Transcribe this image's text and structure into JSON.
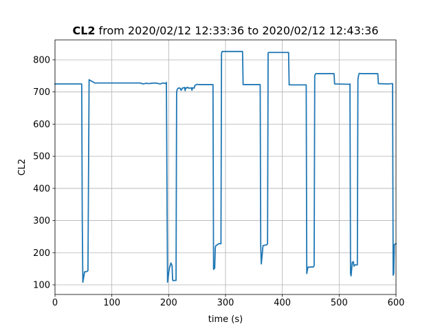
{
  "chart_data": {
    "type": "line",
    "title_bold": "CL2",
    "title_rest": " from 2020/02/12 12:33:36 to 2020/02/12 12:43:36",
    "xlabel": "time (s)",
    "ylabel": "CL2",
    "xlim": [
      0,
      600
    ],
    "ylim": [
      70,
      862
    ],
    "xticks": [
      0,
      100,
      200,
      300,
      400,
      500,
      600
    ],
    "yticks": [
      100,
      200,
      300,
      400,
      500,
      600,
      700,
      800
    ],
    "grid": true,
    "series": [
      {
        "color": "#1f77b4",
        "x": [
          0,
          47,
          48,
          49,
          52,
          57,
          58,
          60,
          70,
          100,
          150,
          155,
          160,
          165,
          170,
          175,
          180,
          185,
          190,
          195,
          196,
          198,
          201,
          204,
          206,
          207,
          208,
          213,
          214,
          215,
          217,
          220,
          222,
          224,
          226,
          228,
          229,
          230,
          231,
          232,
          233,
          235,
          237,
          240,
          241,
          242,
          243,
          245,
          246,
          250,
          252,
          275,
          278,
          279,
          281,
          282,
          283,
          286,
          288,
          292,
          293,
          294,
          330,
          331,
          332,
          360,
          361,
          362,
          363,
          366,
          373,
          374,
          375,
          376,
          378,
          411,
          412,
          413,
          414,
          440,
          442,
          443,
          445,
          447,
          455,
          456,
          457,
          458,
          459,
          462,
          491,
          492,
          518,
          519,
          520,
          521,
          523,
          525,
          526,
          527,
          532,
          533,
          534,
          535,
          536,
          538,
          540,
          568,
          569,
          585,
          586,
          593,
          594,
          595,
          596,
          597,
          598,
          600
        ],
        "y": [
          725,
          725,
          300,
          108,
          140,
          142,
          145,
          738,
          728,
          728,
          728,
          725,
          727,
          726,
          727,
          728,
          727,
          725,
          728,
          726,
          730,
          108,
          150,
          168,
          160,
          115,
          113,
          114,
          700,
          708,
          712,
          712,
          705,
          712,
          713,
          714,
          704,
          713,
          712,
          713,
          715,
          712,
          712,
          713,
          705,
          713,
          713,
          712,
          720,
          724,
          723,
          723,
          723,
          148,
          152,
          215,
          222,
          225,
          228,
          228,
          820,
          826,
          826,
          723,
          723,
          723,
          723,
          220,
          165,
          222,
          225,
          228,
          822,
          823,
          823,
          823,
          722,
          723,
          722,
          722,
          722,
          135,
          155,
          155,
          156,
          160,
          750,
          755,
          757,
          757,
          757,
          725,
          724,
          725,
          135,
          128,
          170,
          172,
          158,
          162,
          162,
          738,
          750,
          757,
          758,
          757,
          757,
          757,
          726,
          725,
          725,
          726,
          726,
          130,
          135,
          225,
          226,
          228
        ]
      }
    ]
  }
}
